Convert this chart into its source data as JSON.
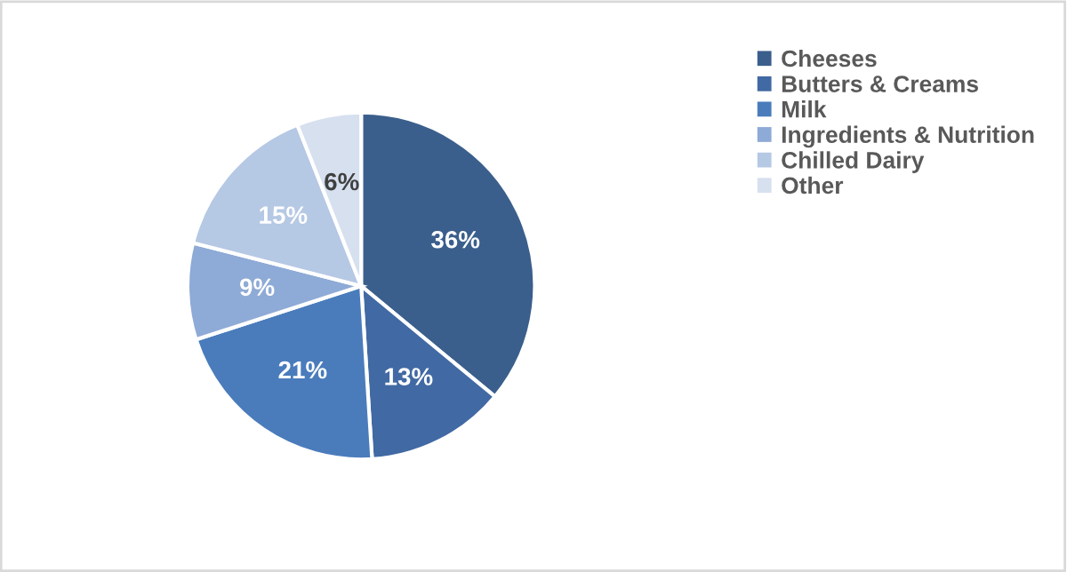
{
  "chart_data": {
    "type": "pie",
    "categories": [
      "Cheeses",
      "Butters & Creams",
      "Milk",
      "Ingredients & Nutrition",
      "Chilled Dairy",
      "Other"
    ],
    "values": [
      36,
      13,
      21,
      9,
      15,
      6
    ],
    "colors": [
      "#3b5f8c",
      "#4169a3",
      "#4a7cbc",
      "#8eaad6",
      "#b5c8e4",
      "#d6e0ef"
    ],
    "value_labels": [
      "36%",
      "13%",
      "21%",
      "9%",
      "15%",
      "6%"
    ],
    "legend": "top right"
  }
}
